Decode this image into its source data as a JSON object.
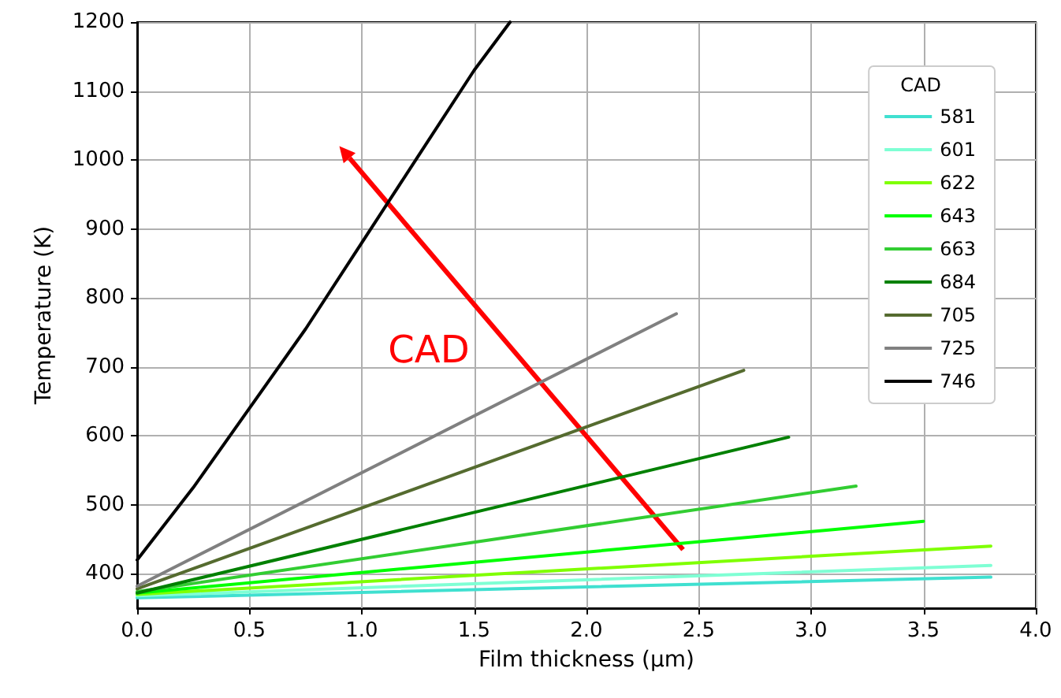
{
  "chart_data": {
    "type": "line",
    "xlabel": "Film thickness (µm)",
    "ylabel": "Temperature (K)",
    "legend_title": "CAD",
    "legend": "top right",
    "grid": true,
    "marker": "none",
    "line_style": "solid",
    "xlim": [
      0,
      4
    ],
    "xticks": [
      {
        "value": 0,
        "label": "0.0"
      },
      {
        "value": 0.5,
        "label": "0.5"
      },
      {
        "value": 1,
        "label": "1.0"
      },
      {
        "value": 1.5,
        "label": "1.5"
      },
      {
        "value": 2,
        "label": "2.0"
      },
      {
        "value": 2.5,
        "label": "2.5"
      },
      {
        "value": 3,
        "label": "3.0"
      },
      {
        "value": 3.5,
        "label": "3.5"
      },
      {
        "value": 4,
        "label": "4.0"
      }
    ],
    "ylim": [
      350,
      1200
    ],
    "yticks": [
      400,
      500,
      600,
      700,
      800,
      900,
      1000,
      1100,
      1200
    ],
    "annotations": [
      "CAD"
    ],
    "series": [
      {
        "name": "581",
        "color": "#40e0d0",
        "x": [
          0,
          3.8
        ],
        "values": [
          365,
          395
        ]
      },
      {
        "name": "601",
        "color": "#7fffd4",
        "x": [
          0,
          3.8
        ],
        "values": [
          368,
          412
        ]
      },
      {
        "name": "622",
        "color": "#7fff00",
        "x": [
          0,
          3.8
        ],
        "values": [
          370,
          440
        ]
      },
      {
        "name": "643",
        "color": "#00ff00",
        "x": [
          0,
          3.5
        ],
        "values": [
          372,
          476
        ]
      },
      {
        "name": "663",
        "color": "#32cd32",
        "x": [
          0,
          3.2
        ],
        "values": [
          374,
          527
        ]
      },
      {
        "name": "684",
        "color": "#008000",
        "x": [
          0,
          2.9
        ],
        "values": [
          372,
          598
        ]
      },
      {
        "name": "705",
        "color": "#556b2f",
        "x": [
          0,
          2.7
        ],
        "values": [
          378,
          695
        ]
      },
      {
        "name": "725",
        "color": "#808080",
        "x": [
          0,
          2.4
        ],
        "values": [
          382,
          777
        ]
      },
      {
        "name": "746",
        "color": "#000000",
        "x": [
          0,
          0.25,
          0.5,
          0.75,
          1,
          1.25,
          1.5,
          1.66
        ],
        "values": [
          420,
          525,
          640,
          755,
          880,
          1005,
          1130,
          1200
        ]
      }
    ]
  }
}
